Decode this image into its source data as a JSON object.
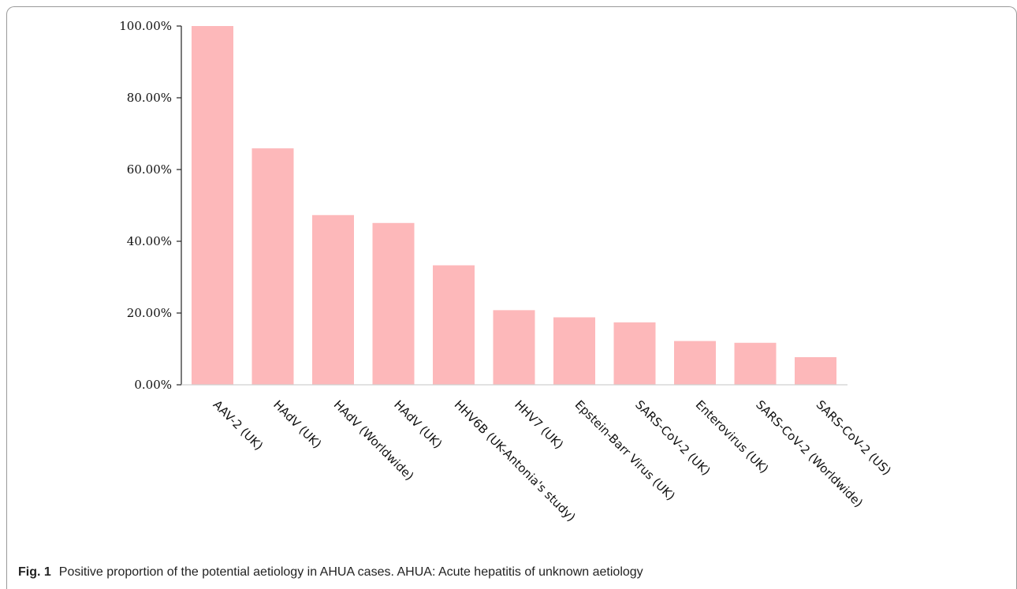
{
  "chart_data": {
    "type": "bar",
    "categories": [
      "AAV-2 (UK)",
      "HAdV (UK)",
      "HAdV (Worldwide)",
      "HAdV (UK)",
      "HHV6B (UK-Antonia's study)",
      "HHV7 (UK)",
      "Epstein-Barr Virus (UK)",
      "SARS-CoV-2 (UK)",
      "Enterovirus (UK)",
      "SARS-CoV-2 (Worldwide)",
      "SARS-CoV-2 (US)"
    ],
    "values": [
      100.0,
      65.9,
      47.3,
      45.1,
      33.3,
      20.8,
      18.8,
      17.4,
      12.2,
      11.7,
      7.7
    ],
    "ylim": [
      0,
      100
    ],
    "yticks": [
      0,
      20,
      40,
      60,
      80,
      100
    ],
    "ytick_labels": [
      "0.00%",
      "20.00%",
      "40.00%",
      "60.00%",
      "80.00%",
      "100.00%"
    ],
    "bar_color": "#fdb8ba",
    "grid": false
  },
  "caption": {
    "label": "Fig. 1",
    "text": "Positive proportion of the potential aetiology in AHUA cases. AHUA: Acute hepatitis of unknown aetiology"
  }
}
